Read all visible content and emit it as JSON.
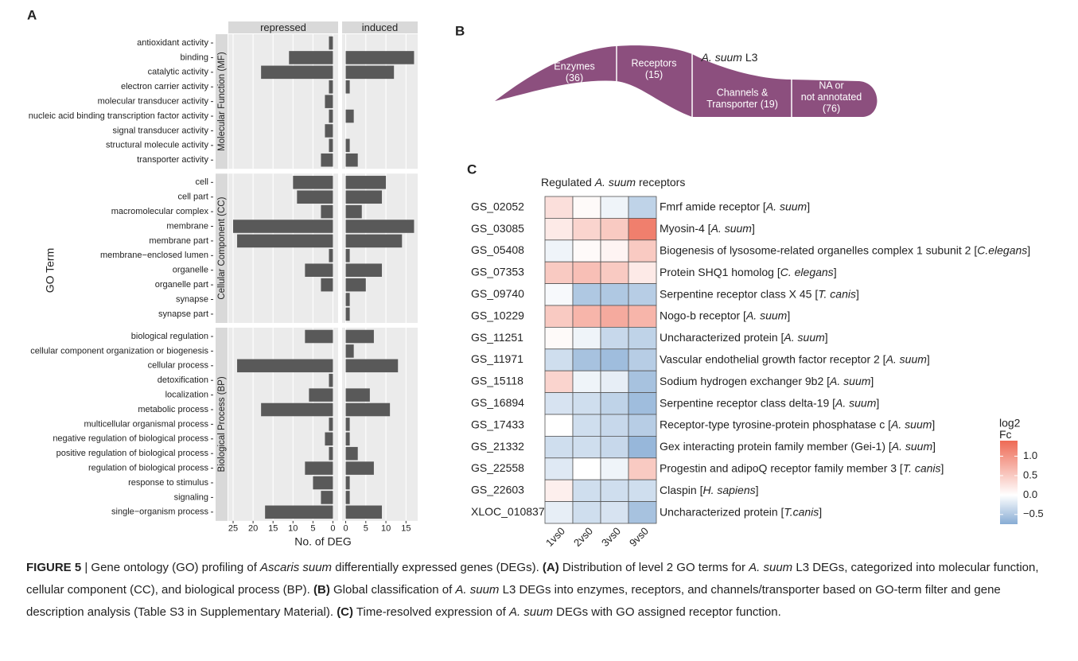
{
  "panel_labels": [
    "A",
    "B",
    "C"
  ],
  "chart_data": [
    {
      "type": "bar",
      "orientation": "horizontal",
      "xlabel": "No. of DEG",
      "ylabel": "GO Term",
      "color": "#595959",
      "grid": true,
      "groups": [
        {
          "name": "Molecular Function (MF)",
          "categories": [
            "antioxidant activity",
            "binding",
            "catalytic activity",
            "electron carrier activity",
            "molecular transducer activity",
            "nucleic acid binding transcription factor activity",
            "signal transducer activity",
            "structural molecule activity",
            "transporter activity"
          ]
        },
        {
          "name": "Cellular Component (CC)",
          "categories": [
            "cell",
            "cell part",
            "macromolecular complex",
            "membrane",
            "membrane part",
            "membrane−enclosed lumen",
            "organelle",
            "organelle part",
            "synapse",
            "synapse part"
          ]
        },
        {
          "name": "Biological Process (BP)",
          "categories": [
            "biological regulation",
            "cellular component organization or biogenesis",
            "cellular process",
            "detoxification",
            "localization",
            "metabolic process",
            "multicellular organismal process",
            "negative regulation of biological process",
            "positive regulation of biological process",
            "regulation of biological process",
            "response to stimulus",
            "signaling",
            "single−organism process"
          ]
        }
      ],
      "series": [
        {
          "name": "repressed",
          "xlim": [
            26.2,
            -1.3
          ],
          "xticks": [
            25,
            20,
            15,
            10,
            5,
            0
          ],
          "values": [
            1,
            11,
            18,
            1,
            2,
            1,
            2,
            1,
            3,
            10,
            9,
            3,
            25,
            24,
            1,
            7,
            3,
            0,
            0,
            7,
            0,
            24,
            1,
            6,
            18,
            1,
            2,
            1,
            7,
            5,
            3,
            17
          ]
        },
        {
          "name": "induced",
          "xlim": [
            -0.9,
            17.9
          ],
          "xticks": [
            0,
            5,
            10,
            15
          ],
          "values": [
            0,
            17,
            12,
            1,
            0,
            2,
            0,
            1,
            3,
            10,
            9,
            4,
            17,
            14,
            1,
            9,
            5,
            1,
            1,
            7,
            2,
            13,
            0,
            6,
            11,
            1,
            1,
            3,
            7,
            1,
            1,
            9
          ]
        }
      ]
    },
    {
      "type": "heatmap",
      "title": [
        {
          "text": "Regulated "
        },
        {
          "text": "A. suum",
          "style": "italic"
        },
        {
          "text": " receptors"
        }
      ],
      "columns": [
        "1vs0",
        "2vs0",
        "3vs0",
        "9vs0"
      ],
      "rows": [
        {
          "id": "GS_02052",
          "description": [
            {
              "text": "Fmrf amide receptor ["
            },
            {
              "text": "A. suum",
              "style": "italic"
            },
            {
              "text": "]"
            }
          ]
        },
        {
          "id": "GS_03085",
          "description": [
            {
              "text": "Myosin-4 ["
            },
            {
              "text": "A. suum",
              "style": "italic"
            },
            {
              "text": "]"
            }
          ]
        },
        {
          "id": "GS_05408",
          "description": [
            {
              "text": "Biogenesis of lysosome-related organelles complex 1 subunit 2 ["
            },
            {
              "text": "C.elegans",
              "style": "italic"
            },
            {
              "text": "]"
            }
          ]
        },
        {
          "id": "GS_07353",
          "description": [
            {
              "text": "Protein SHQ1 homolog ["
            },
            {
              "text": "C. elegans",
              "style": "italic"
            },
            {
              "text": "]"
            }
          ]
        },
        {
          "id": "GS_09740",
          "description": [
            {
              "text": "Serpentine receptor class X 45 ["
            },
            {
              "text": "T. canis",
              "style": "italic"
            },
            {
              "text": "]"
            }
          ]
        },
        {
          "id": "GS_10229",
          "description": [
            {
              "text": "Nogo-b receptor ["
            },
            {
              "text": "A. suum",
              "style": "italic"
            },
            {
              "text": "]"
            }
          ]
        },
        {
          "id": "GS_11251",
          "description": [
            {
              "text": "Uncharacterized protein ["
            },
            {
              "text": "A. suum",
              "style": "italic"
            },
            {
              "text": "]"
            }
          ]
        },
        {
          "id": "GS_11971",
          "description": [
            {
              "text": "Vascular endothelial growth factor receptor 2 ["
            },
            {
              "text": "A. suum",
              "style": "italic"
            },
            {
              "text": "]"
            }
          ]
        },
        {
          "id": "GS_15118",
          "description": [
            {
              "text": "Sodium hydrogen exchanger 9b2 ["
            },
            {
              "text": "A. suum",
              "style": "italic"
            },
            {
              "text": "]"
            }
          ]
        },
        {
          "id": "GS_16894",
          "description": [
            {
              "text": "Serpentine receptor class delta-19 ["
            },
            {
              "text": "A. suum",
              "style": "italic"
            },
            {
              "text": "]"
            }
          ]
        },
        {
          "id": "GS_17433",
          "description": [
            {
              "text": "Receptor-type tyrosine-protein phosphatase c ["
            },
            {
              "text": "A. suum",
              "style": "italic"
            },
            {
              "text": "]"
            }
          ]
        },
        {
          "id": "GS_21332",
          "description": [
            {
              "text": "Gex interacting protein family member (Gei-1) ["
            },
            {
              "text": "A. suum",
              "style": "italic"
            },
            {
              "text": "]"
            }
          ]
        },
        {
          "id": "GS_22558",
          "description": [
            {
              "text": "Progestin and adipoQ receptor family member 3 ["
            },
            {
              "text": "T. canis",
              "style": "italic"
            },
            {
              "text": "]"
            }
          ]
        },
        {
          "id": "GS_22603",
          "description": [
            {
              "text": "Claspin ["
            },
            {
              "text": "H. sapiens",
              "style": "italic"
            },
            {
              "text": "]"
            }
          ]
        },
        {
          "id": "XLOC_010837",
          "description": [
            {
              "text": "Uncharacterized protein ["
            },
            {
              "text": "T.canis",
              "style": "italic"
            },
            {
              "text": "]"
            }
          ]
        }
      ],
      "values": [
        [
          0.3,
          0.05,
          -0.1,
          -0.4
        ],
        [
          0.2,
          0.4,
          0.5,
          1.2
        ],
        [
          -0.1,
          0.05,
          0.1,
          0.5
        ],
        [
          0.5,
          0.6,
          0.5,
          0.2
        ],
        [
          -0.05,
          -0.5,
          -0.5,
          -0.45
        ],
        [
          0.5,
          0.7,
          0.8,
          0.7
        ],
        [
          0.05,
          -0.1,
          -0.35,
          -0.4
        ],
        [
          -0.3,
          -0.55,
          -0.6,
          -0.45
        ],
        [
          0.4,
          -0.1,
          -0.15,
          -0.55
        ],
        [
          -0.25,
          -0.3,
          -0.4,
          -0.6
        ],
        [
          0,
          -0.3,
          -0.35,
          -0.45
        ],
        [
          -0.3,
          -0.3,
          -0.35,
          -0.65
        ],
        [
          -0.2,
          0,
          -0.1,
          0.5
        ],
        [
          0.15,
          -0.3,
          -0.3,
          -0.3
        ],
        [
          -0.15,
          -0.3,
          -0.25,
          -0.55
        ]
      ],
      "colorbar_title": [
        "log2",
        "Fc"
      ],
      "clim": [
        -0.75,
        1.4
      ],
      "cticks": [
        {
          "value": 1,
          "label": "1.0"
        },
        0.5,
        {
          "value": 0,
          "label": "0.0"
        },
        {
          "value": -0.5,
          "label": "−0.5"
        }
      ],
      "color_low": "#87acd4",
      "color_mid": "#ffffff",
      "color_high": "#ee6a55"
    }
  ],
  "diagram": {
    "title": [
      {
        "text": "A. suum",
        "style": "italic"
      },
      {
        "text": " L3"
      }
    ],
    "color": "#8c4f7e",
    "segments": [
      {
        "lines": [
          "Enzymes",
          "(36)"
        ]
      },
      {
        "lines": [
          "Receptors",
          "(15)"
        ]
      },
      {
        "lines": [
          "Channels &",
          "Transporter (19)"
        ]
      },
      {
        "lines": [
          "NA or",
          "not annotated",
          "(76)"
        ]
      }
    ]
  },
  "caption": {
    "segments": [
      {
        "text": "FIGURE 5",
        "style": "bold"
      },
      {
        "text": " | Gene ontology (GO) profiling of "
      },
      {
        "text": "Ascaris suum",
        "style": "italic"
      },
      {
        "text": " differentially expressed genes (DEGs). "
      },
      {
        "text": "(A)",
        "style": "bold"
      },
      {
        "text": " Distribution of level 2 GO terms for "
      },
      {
        "text": "A. suum",
        "style": "italic"
      },
      {
        "text": " L3 DEGs, categorized into molecular function, cellular component (CC), and biological process (BP). "
      },
      {
        "text": "(B)",
        "style": "bold"
      },
      {
        "text": " Global classification of "
      },
      {
        "text": "A. suum",
        "style": "italic"
      },
      {
        "text": " L3 DEGs into enzymes, receptors, and channels/transporter based on GO-term filter and gene description analysis (Table S3 in Supplementary Material). "
      },
      {
        "text": "(C)",
        "style": "bold"
      },
      {
        "text": " Time-resolved expression of "
      },
      {
        "text": "A. suum",
        "style": "italic"
      },
      {
        "text": " DEGs with GO assigned receptor function."
      }
    ]
  }
}
